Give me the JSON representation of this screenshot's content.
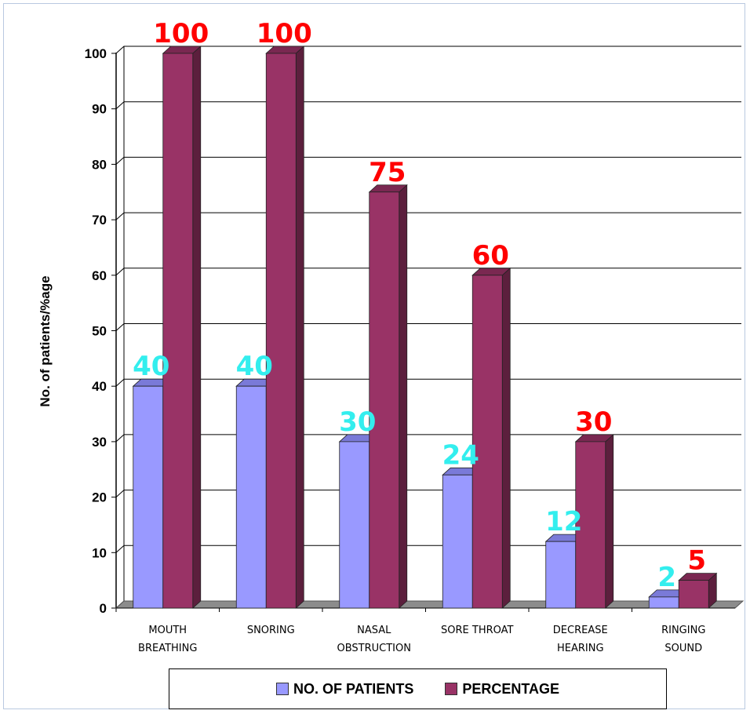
{
  "chart_data": {
    "type": "bar",
    "ylabel": "No. of patients/%age",
    "xlabel": "",
    "ylim": [
      0,
      100
    ],
    "yticks": [
      "0",
      "10",
      "20",
      "30",
      "40",
      "50",
      "60",
      "70",
      "80",
      "90",
      "100"
    ],
    "grid": true,
    "legend_position": "bottom",
    "categories": [
      [
        "MOUTH",
        "BREATHING"
      ],
      [
        "SNORING"
      ],
      [
        "NASAL",
        "OBSTRUCTION"
      ],
      [
        "SORE THROAT"
      ],
      [
        "DECREASE",
        "HEARING"
      ],
      [
        "RINGING",
        "SOUND"
      ]
    ],
    "series": [
      {
        "name": "NO. OF PATIENTS",
        "values": [
          40,
          40,
          30,
          24,
          12,
          2
        ],
        "labels": [
          "40",
          "40",
          "30",
          "24",
          "12",
          "2"
        ],
        "color": "#9999ff",
        "side_color": "#6c6cc4",
        "top_color": "#7a7ad8",
        "label_color": "#33eeee"
      },
      {
        "name": "PERCENTAGE",
        "values": [
          100,
          100,
          75,
          60,
          30,
          5
        ],
        "labels": [
          "100",
          "100",
          "75",
          "60",
          "30",
          "5"
        ],
        "color": "#993366",
        "side_color": "#5c1f3d",
        "top_color": "#7a2851",
        "label_color": "#ff0000"
      }
    ]
  }
}
